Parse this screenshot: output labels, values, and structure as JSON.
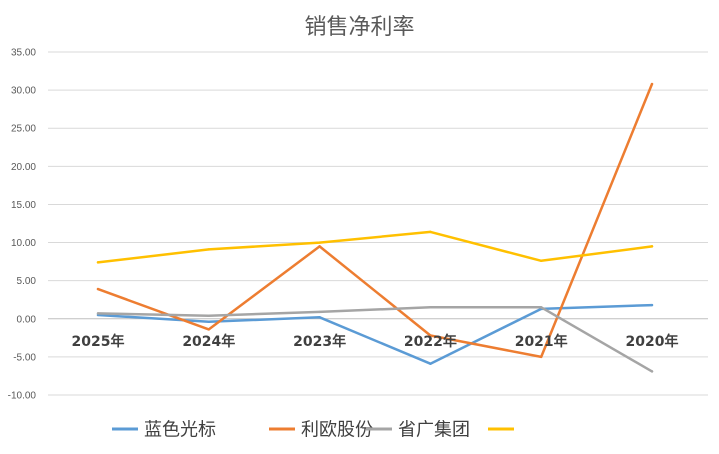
{
  "chart_data": {
    "type": "line",
    "title": "销售净利率",
    "categories": [
      "2025年",
      "2024年",
      "2023年",
      "2022年",
      "2021年",
      "2020年"
    ],
    "ylim": [
      -10,
      35
    ],
    "yticks": [
      "35.00",
      "30.00",
      "25.00",
      "20.00",
      "15.00",
      "10.00",
      "5.00",
      "0.00",
      "-5.00",
      "-10.00"
    ],
    "grid": true,
    "legend_position": "bottom",
    "series": [
      {
        "name": "蓝色光标",
        "color": "#5b9bd5",
        "values": [
          0.5,
          -0.4,
          0.2,
          -5.9,
          1.3,
          1.8
        ]
      },
      {
        "name": "利欧股份",
        "color": "#ed7d31",
        "values": [
          3.9,
          -1.4,
          9.5,
          -2.2,
          -5.0,
          30.8
        ]
      },
      {
        "name": "省广集团",
        "color": "#a5a5a5",
        "values": [
          0.7,
          0.4,
          0.9,
          1.5,
          1.5,
          -6.9
        ]
      },
      {
        "name": "",
        "color": "#ffc000",
        "values": [
          7.4,
          9.1,
          10.0,
          11.4,
          7.6,
          9.5
        ]
      }
    ]
  }
}
